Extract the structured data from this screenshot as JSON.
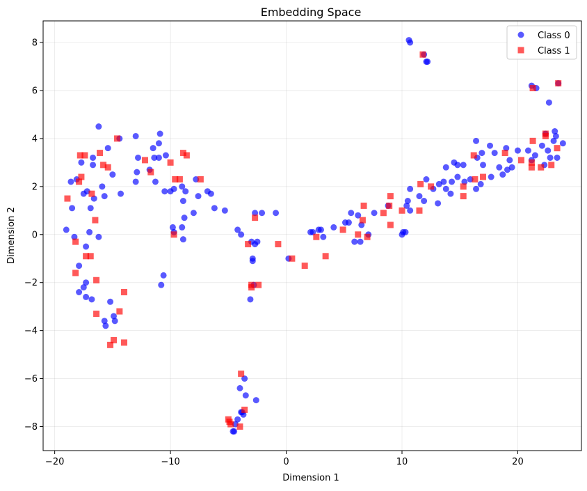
{
  "chart_data": {
    "type": "scatter",
    "title": "Embedding Space",
    "xlabel": "Dimension 1",
    "ylabel": "Dimension 2",
    "xlim": [
      -21,
      25.5
    ],
    "ylim": [
      -9,
      8.9
    ],
    "x_ticks": [
      -20,
      -10,
      0,
      10,
      20
    ],
    "y_ticks": [
      -8,
      -6,
      -4,
      -2,
      0,
      2,
      4,
      6,
      8
    ],
    "grid": true,
    "legend_position": "top-right",
    "series": [
      {
        "name": "Class 0",
        "marker": "circle",
        "color": "#0000ff",
        "points": [
          [
            -19,
            0.2
          ],
          [
            -18.6,
            2.2
          ],
          [
            -18.5,
            1.1
          ],
          [
            -18.3,
            -0.1
          ],
          [
            -18.1,
            2.3
          ],
          [
            -17.9,
            -1.3
          ],
          [
            -17.9,
            -2.4
          ],
          [
            -17.7,
            3.0
          ],
          [
            -17.5,
            -2.2
          ],
          [
            -17.5,
            1.7
          ],
          [
            -17.3,
            -0.5
          ],
          [
            -17.3,
            -2.0
          ],
          [
            -17.3,
            -2.6
          ],
          [
            -17.2,
            1.8
          ],
          [
            -17.0,
            0.1
          ],
          [
            -16.8,
            -2.7
          ],
          [
            -16.9,
            1.1
          ],
          [
            -16.7,
            2.9
          ],
          [
            -16.7,
            3.2
          ],
          [
            -16.6,
            1.5
          ],
          [
            -16.2,
            -0.1
          ],
          [
            -16.2,
            4.5
          ],
          [
            -15.9,
            2.0
          ],
          [
            -15.7,
            -3.6
          ],
          [
            -15.7,
            1.6
          ],
          [
            -15.6,
            -3.8
          ],
          [
            -15.4,
            3.6
          ],
          [
            -15.2,
            -2.8
          ],
          [
            -15.0,
            2.5
          ],
          [
            -14.9,
            -3.4
          ],
          [
            -14.8,
            -3.6
          ],
          [
            -14.4,
            4.0
          ],
          [
            -14.3,
            1.7
          ],
          [
            -13.0,
            4.1
          ],
          [
            -13.0,
            2.2
          ],
          [
            -12.8,
            3.2
          ],
          [
            -12.9,
            2.6
          ],
          [
            -11.8,
            2.7
          ],
          [
            -11.5,
            3.6
          ],
          [
            -11.4,
            3.2
          ],
          [
            -11.3,
            2.2
          ],
          [
            -11.0,
            3.2
          ],
          [
            -11.0,
            3.8
          ],
          [
            -10.9,
            4.2
          ],
          [
            -10.8,
            -2.1
          ],
          [
            -10.6,
            -1.7
          ],
          [
            -10.5,
            1.8
          ],
          [
            -10.4,
            3.3
          ],
          [
            -10.0,
            1.8
          ],
          [
            -9.8,
            0.3
          ],
          [
            -9.7,
            1.9
          ],
          [
            -9.7,
            0.1
          ],
          [
            -9.0,
            2.0
          ],
          [
            -9.0,
            0.3
          ],
          [
            -8.9,
            -0.2
          ],
          [
            -8.9,
            1.4
          ],
          [
            -8.8,
            0.7
          ],
          [
            -8.7,
            1.8
          ],
          [
            -8.0,
            0.9
          ],
          [
            -7.8,
            2.3
          ],
          [
            -7.6,
            1.6
          ],
          [
            -6.8,
            1.8
          ],
          [
            -6.5,
            1.7
          ],
          [
            -6.2,
            1.1
          ],
          [
            -5.3,
            1.0
          ],
          [
            -4.2,
            0.2
          ],
          [
            -3.9,
            0.0
          ],
          [
            -3.0,
            -0.3
          ],
          [
            -2.9,
            -1.0
          ],
          [
            -2.9,
            -1.1
          ],
          [
            -2.7,
            -0.4
          ],
          [
            -2.7,
            0.9
          ],
          [
            -2.5,
            -0.3
          ],
          [
            -2.1,
            0.9
          ],
          [
            -3.1,
            -2.7
          ],
          [
            -2.8,
            -2.1
          ],
          [
            -2.6,
            -6.9
          ],
          [
            -3.5,
            -6.7
          ],
          [
            -3.6,
            -6.0
          ],
          [
            -4.0,
            -6.4
          ],
          [
            -3.8,
            -7.4
          ],
          [
            -3.7,
            -7.5
          ],
          [
            -3.9,
            -7.4
          ],
          [
            -4.2,
            -7.7
          ],
          [
            -4.6,
            -8.2
          ],
          [
            -4.5,
            -8.2
          ],
          [
            -4.4,
            -7.9
          ],
          [
            -0.9,
            0.9
          ],
          [
            0.2,
            -1.0
          ],
          [
            2.1,
            0.1
          ],
          [
            2.3,
            0.1
          ],
          [
            2.8,
            0.2
          ],
          [
            3.0,
            0.2
          ],
          [
            3.2,
            -0.1
          ],
          [
            4.1,
            0.3
          ],
          [
            5.1,
            0.5
          ],
          [
            5.4,
            0.5
          ],
          [
            5.6,
            0.9
          ],
          [
            5.9,
            -0.3
          ],
          [
            6.2,
            0.8
          ],
          [
            6.4,
            -0.3
          ],
          [
            6.5,
            0.4
          ],
          [
            7.1,
            0.0
          ],
          [
            7.6,
            0.9
          ],
          [
            8.8,
            1.2
          ],
          [
            10.0,
            0.0
          ],
          [
            10.1,
            0.1
          ],
          [
            10.3,
            0.1
          ],
          [
            10.4,
            1.2
          ],
          [
            10.5,
            1.4
          ],
          [
            10.7,
            1.9
          ],
          [
            10.7,
            1.0
          ],
          [
            11.5,
            1.6
          ],
          [
            11.9,
            1.4
          ],
          [
            12.1,
            2.3
          ],
          [
            12.7,
            1.9
          ],
          [
            13.1,
            1.3
          ],
          [
            13.2,
            2.1
          ],
          [
            13.6,
            2.2
          ],
          [
            13.8,
            2.8
          ],
          [
            13.8,
            1.9
          ],
          [
            14.2,
            1.7
          ],
          [
            14.3,
            2.2
          ],
          [
            14.5,
            3.0
          ],
          [
            14.8,
            2.4
          ],
          [
            14.8,
            2.9
          ],
          [
            15.3,
            2.9
          ],
          [
            15.4,
            2.2
          ],
          [
            15.9,
            2.3
          ],
          [
            16.4,
            1.9
          ],
          [
            16.4,
            3.9
          ],
          [
            16.5,
            3.2
          ],
          [
            16.8,
            2.1
          ],
          [
            16.9,
            3.4
          ],
          [
            17.0,
            2.9
          ],
          [
            17.6,
            3.7
          ],
          [
            17.7,
            2.4
          ],
          [
            18.0,
            3.4
          ],
          [
            18.4,
            2.8
          ],
          [
            18.7,
            2.5
          ],
          [
            19.0,
            3.6
          ],
          [
            19.1,
            2.7
          ],
          [
            19.3,
            3.1
          ],
          [
            19.5,
            2.8
          ],
          [
            20.0,
            3.5
          ],
          [
            20.9,
            3.5
          ],
          [
            21.2,
            3.1
          ],
          [
            21.5,
            3.3
          ],
          [
            22.1,
            3.7
          ],
          [
            22.3,
            2.9
          ],
          [
            22.4,
            4.2
          ],
          [
            22.6,
            3.5
          ],
          [
            22.7,
            5.5
          ],
          [
            22.8,
            3.2
          ],
          [
            23.1,
            3.9
          ],
          [
            23.2,
            4.3
          ],
          [
            23.3,
            4.1
          ],
          [
            23.4,
            3.2
          ],
          [
            23.9,
            3.8
          ],
          [
            21.2,
            6.2
          ],
          [
            21.6,
            6.1
          ],
          [
            23.5,
            6.3
          ],
          [
            10.6,
            8.1
          ],
          [
            10.7,
            8.0
          ],
          [
            12.1,
            7.2
          ],
          [
            12.2,
            7.2
          ],
          [
            11.9,
            7.5
          ]
        ]
      },
      {
        "name": "Class 1",
        "marker": "square",
        "color": "#ff0000",
        "points": [
          [
            -18.9,
            1.5
          ],
          [
            -18.2,
            -0.3
          ],
          [
            -18.2,
            -1.6
          ],
          [
            -17.9,
            2.2
          ],
          [
            -17.8,
            3.3
          ],
          [
            -17.7,
            2.4
          ],
          [
            -17.4,
            3.3
          ],
          [
            -17.3,
            -0.9
          ],
          [
            -16.9,
            -0.9
          ],
          [
            -16.8,
            1.7
          ],
          [
            -16.5,
            0.6
          ],
          [
            -16.4,
            -1.9
          ],
          [
            -16.4,
            -3.3
          ],
          [
            -16.1,
            3.4
          ],
          [
            -15.8,
            2.9
          ],
          [
            -15.4,
            2.8
          ],
          [
            -15.2,
            -4.6
          ],
          [
            -14.9,
            -4.4
          ],
          [
            -14.6,
            4.0
          ],
          [
            -14.4,
            -3.2
          ],
          [
            -14.0,
            -4.5
          ],
          [
            -14.0,
            -2.4
          ],
          [
            -12.2,
            3.1
          ],
          [
            -11.7,
            2.6
          ],
          [
            -10.0,
            3.0
          ],
          [
            -9.7,
            0.0
          ],
          [
            -9.6,
            2.3
          ],
          [
            -9.2,
            2.3
          ],
          [
            -8.9,
            3.4
          ],
          [
            -8.6,
            3.3
          ],
          [
            -7.4,
            2.3
          ],
          [
            -5.0,
            -7.7
          ],
          [
            -4.9,
            -7.8
          ],
          [
            -4.8,
            -7.9
          ],
          [
            -4.0,
            -8.0
          ],
          [
            -3.9,
            -5.8
          ],
          [
            -3.6,
            -7.3
          ],
          [
            -3.3,
            -0.4
          ],
          [
            -3.0,
            -2.1
          ],
          [
            -3.0,
            -2.2
          ],
          [
            -2.7,
            0.7
          ],
          [
            -2.4,
            -2.1
          ],
          [
            -0.7,
            -0.4
          ],
          [
            0.5,
            -1.0
          ],
          [
            1.6,
            -1.3
          ],
          [
            2.6,
            -0.1
          ],
          [
            3.4,
            -0.9
          ],
          [
            4.9,
            0.2
          ],
          [
            6.2,
            0.0
          ],
          [
            6.6,
            0.6
          ],
          [
            6.7,
            1.2
          ],
          [
            7.0,
            -0.1
          ],
          [
            8.4,
            0.9
          ],
          [
            9.0,
            1.6
          ],
          [
            8.9,
            1.2
          ],
          [
            9.0,
            0.4
          ],
          [
            10.0,
            1.0
          ],
          [
            11.5,
            1.0
          ],
          [
            11.6,
            2.1
          ],
          [
            12.5,
            2.0
          ],
          [
            15.3,
            2.0
          ],
          [
            15.3,
            1.6
          ],
          [
            16.2,
            3.3
          ],
          [
            16.3,
            2.3
          ],
          [
            17.0,
            2.4
          ],
          [
            18.9,
            3.4
          ],
          [
            20.3,
            3.1
          ],
          [
            21.2,
            2.8
          ],
          [
            21.2,
            3.0
          ],
          [
            21.3,
            3.9
          ],
          [
            22.0,
            2.8
          ],
          [
            22.4,
            4.1
          ],
          [
            22.4,
            4.2
          ],
          [
            22.9,
            2.9
          ],
          [
            23.4,
            3.6
          ],
          [
            21.3,
            6.1
          ],
          [
            23.5,
            6.3
          ],
          [
            11.8,
            7.5
          ]
        ]
      }
    ]
  }
}
